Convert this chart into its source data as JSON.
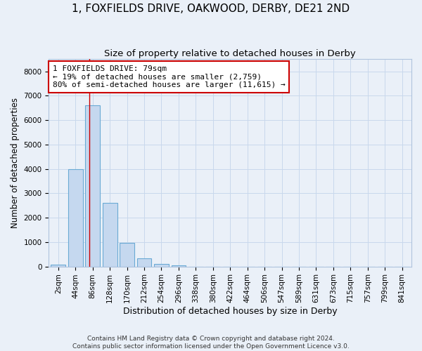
{
  "title": "1, FOXFIELDS DRIVE, OAKWOOD, DERBY, DE21 2ND",
  "subtitle": "Size of property relative to detached houses in Derby",
  "xlabel": "Distribution of detached houses by size in Derby",
  "ylabel": "Number of detached properties",
  "footer_line1": "Contains HM Land Registry data © Crown copyright and database right 2024.",
  "footer_line2": "Contains public sector information licensed under the Open Government Licence v3.0.",
  "bin_labels": [
    "2sqm",
    "44sqm",
    "86sqm",
    "128sqm",
    "170sqm",
    "212sqm",
    "254sqm",
    "296sqm",
    "338sqm",
    "380sqm",
    "422sqm",
    "464sqm",
    "506sqm",
    "547sqm",
    "589sqm",
    "631sqm",
    "673sqm",
    "715sqm",
    "757sqm",
    "799sqm",
    "841sqm"
  ],
  "bar_values": [
    80,
    4000,
    6600,
    2600,
    960,
    330,
    110,
    60,
    0,
    0,
    0,
    0,
    0,
    0,
    0,
    0,
    0,
    0,
    0,
    0,
    0
  ],
  "bar_color": "#c5d8ef",
  "bar_edge_color": "#6aaad4",
  "grid_color": "#c8d8ec",
  "background_color": "#eaf0f8",
  "vline_x": 1.82,
  "vline_color": "#cc0000",
  "annotation_text": "1 FOXFIELDS DRIVE: 79sqm\n← 19% of detached houses are smaller (2,759)\n80% of semi-detached houses are larger (11,615) →",
  "annotation_box_facecolor": "#ffffff",
  "annotation_box_edgecolor": "#cc0000",
  "ylim": [
    0,
    8500
  ],
  "yticks": [
    0,
    1000,
    2000,
    3000,
    4000,
    5000,
    6000,
    7000,
    8000
  ],
  "title_fontsize": 11,
  "subtitle_fontsize": 9.5,
  "xlabel_fontsize": 9,
  "ylabel_fontsize": 8.5,
  "tick_fontsize": 7.5,
  "annotation_fontsize": 8
}
